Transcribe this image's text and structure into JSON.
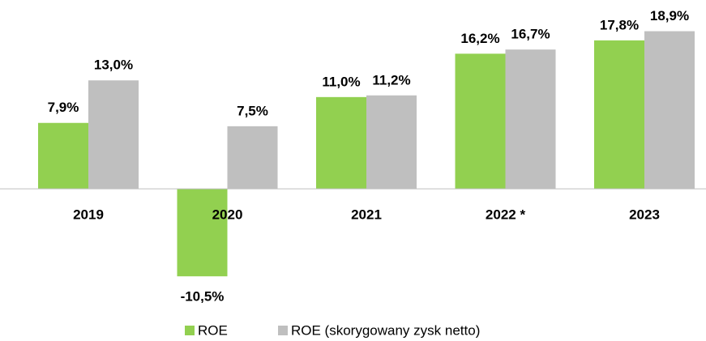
{
  "chart_data": {
    "type": "bar",
    "categories": [
      "2019",
      "2020",
      "2021",
      "2022 *",
      "2023"
    ],
    "series": [
      {
        "name": "ROE",
        "color": "#92d050",
        "values": [
          7.9,
          -10.5,
          11.0,
          16.2,
          17.8
        ],
        "value_labels": [
          "7,9%",
          "-10,5%",
          "11,0%",
          "16,2%",
          "17,8%"
        ]
      },
      {
        "name": "ROE (skorygowany zysk netto)",
        "color": "#bfbfbf",
        "values": [
          13.0,
          7.5,
          11.2,
          16.7,
          18.9
        ],
        "value_labels": [
          "13,0%",
          "7,5%",
          "11,2%",
          "16,7%",
          "18,9%"
        ]
      }
    ],
    "ylim": [
      -12,
      22
    ]
  }
}
